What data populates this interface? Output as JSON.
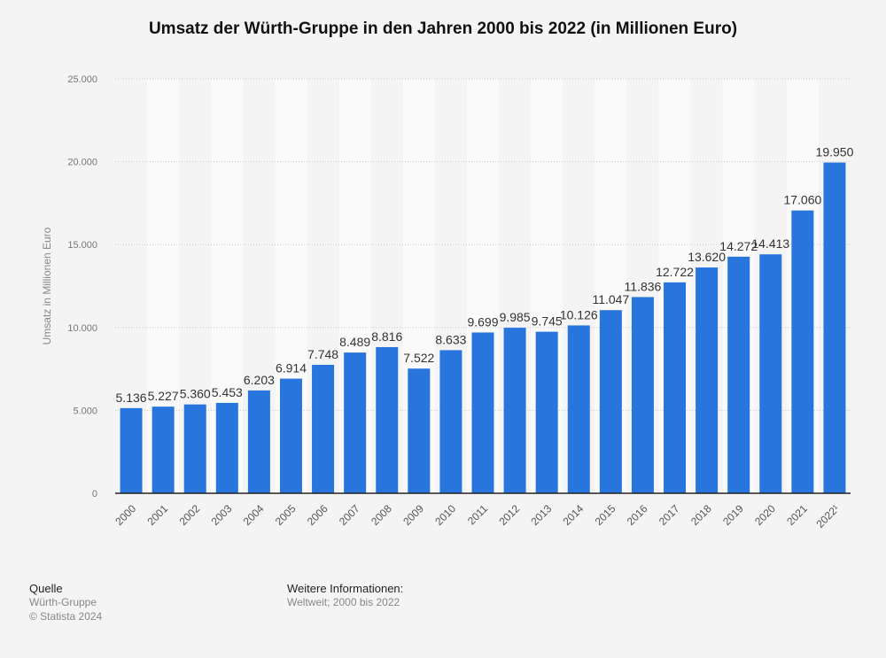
{
  "chart_data": {
    "type": "bar",
    "title": "Umsatz der Würth-Gruppe in den Jahren 2000 bis 2022 (in Millionen Euro)",
    "xlabel": "",
    "ylabel": "Umsatz in Millionen Euro",
    "ylim": [
      0,
      25000
    ],
    "yticks": [
      0,
      5000,
      10000,
      15000,
      20000,
      25000
    ],
    "ytick_labels": [
      "0",
      "5.000",
      "10.000",
      "15.000",
      "20.000",
      "25.000"
    ],
    "categories": [
      "2000",
      "2001",
      "2002",
      "2003",
      "2004",
      "2005",
      "2006",
      "2007",
      "2008",
      "2009",
      "2010",
      "2011",
      "2012",
      "2013",
      "2014",
      "2015",
      "2016",
      "2017",
      "2018",
      "2019",
      "2020",
      "2021",
      "2022¹"
    ],
    "values": [
      5136,
      5227,
      5360,
      5453,
      6203,
      6914,
      7748,
      8489,
      8816,
      7522,
      8633,
      9699,
      9985,
      9745,
      10126,
      11047,
      11836,
      12722,
      13620,
      14272,
      14413,
      17060,
      19950
    ],
    "value_labels": [
      "5.136",
      "5.227",
      "5.360",
      "5.453",
      "6.203",
      "6.914",
      "7.748",
      "8.489",
      "8.816",
      "7.522",
      "8.633",
      "9.699",
      "9.985",
      "9.745",
      "10.126",
      "11.047",
      "11.836",
      "12.722",
      "13.620",
      "14.272",
      "14.413",
      "17.060",
      "19.950"
    ],
    "grid": true,
    "bar_color": "#2876dd"
  },
  "footer": {
    "source_heading": "Quelle",
    "source": "Würth-Gruppe",
    "copyright": "© Statista 2024",
    "info_heading": "Weitere Informationen:",
    "info": "Weltweit; 2000 bis 2022"
  }
}
